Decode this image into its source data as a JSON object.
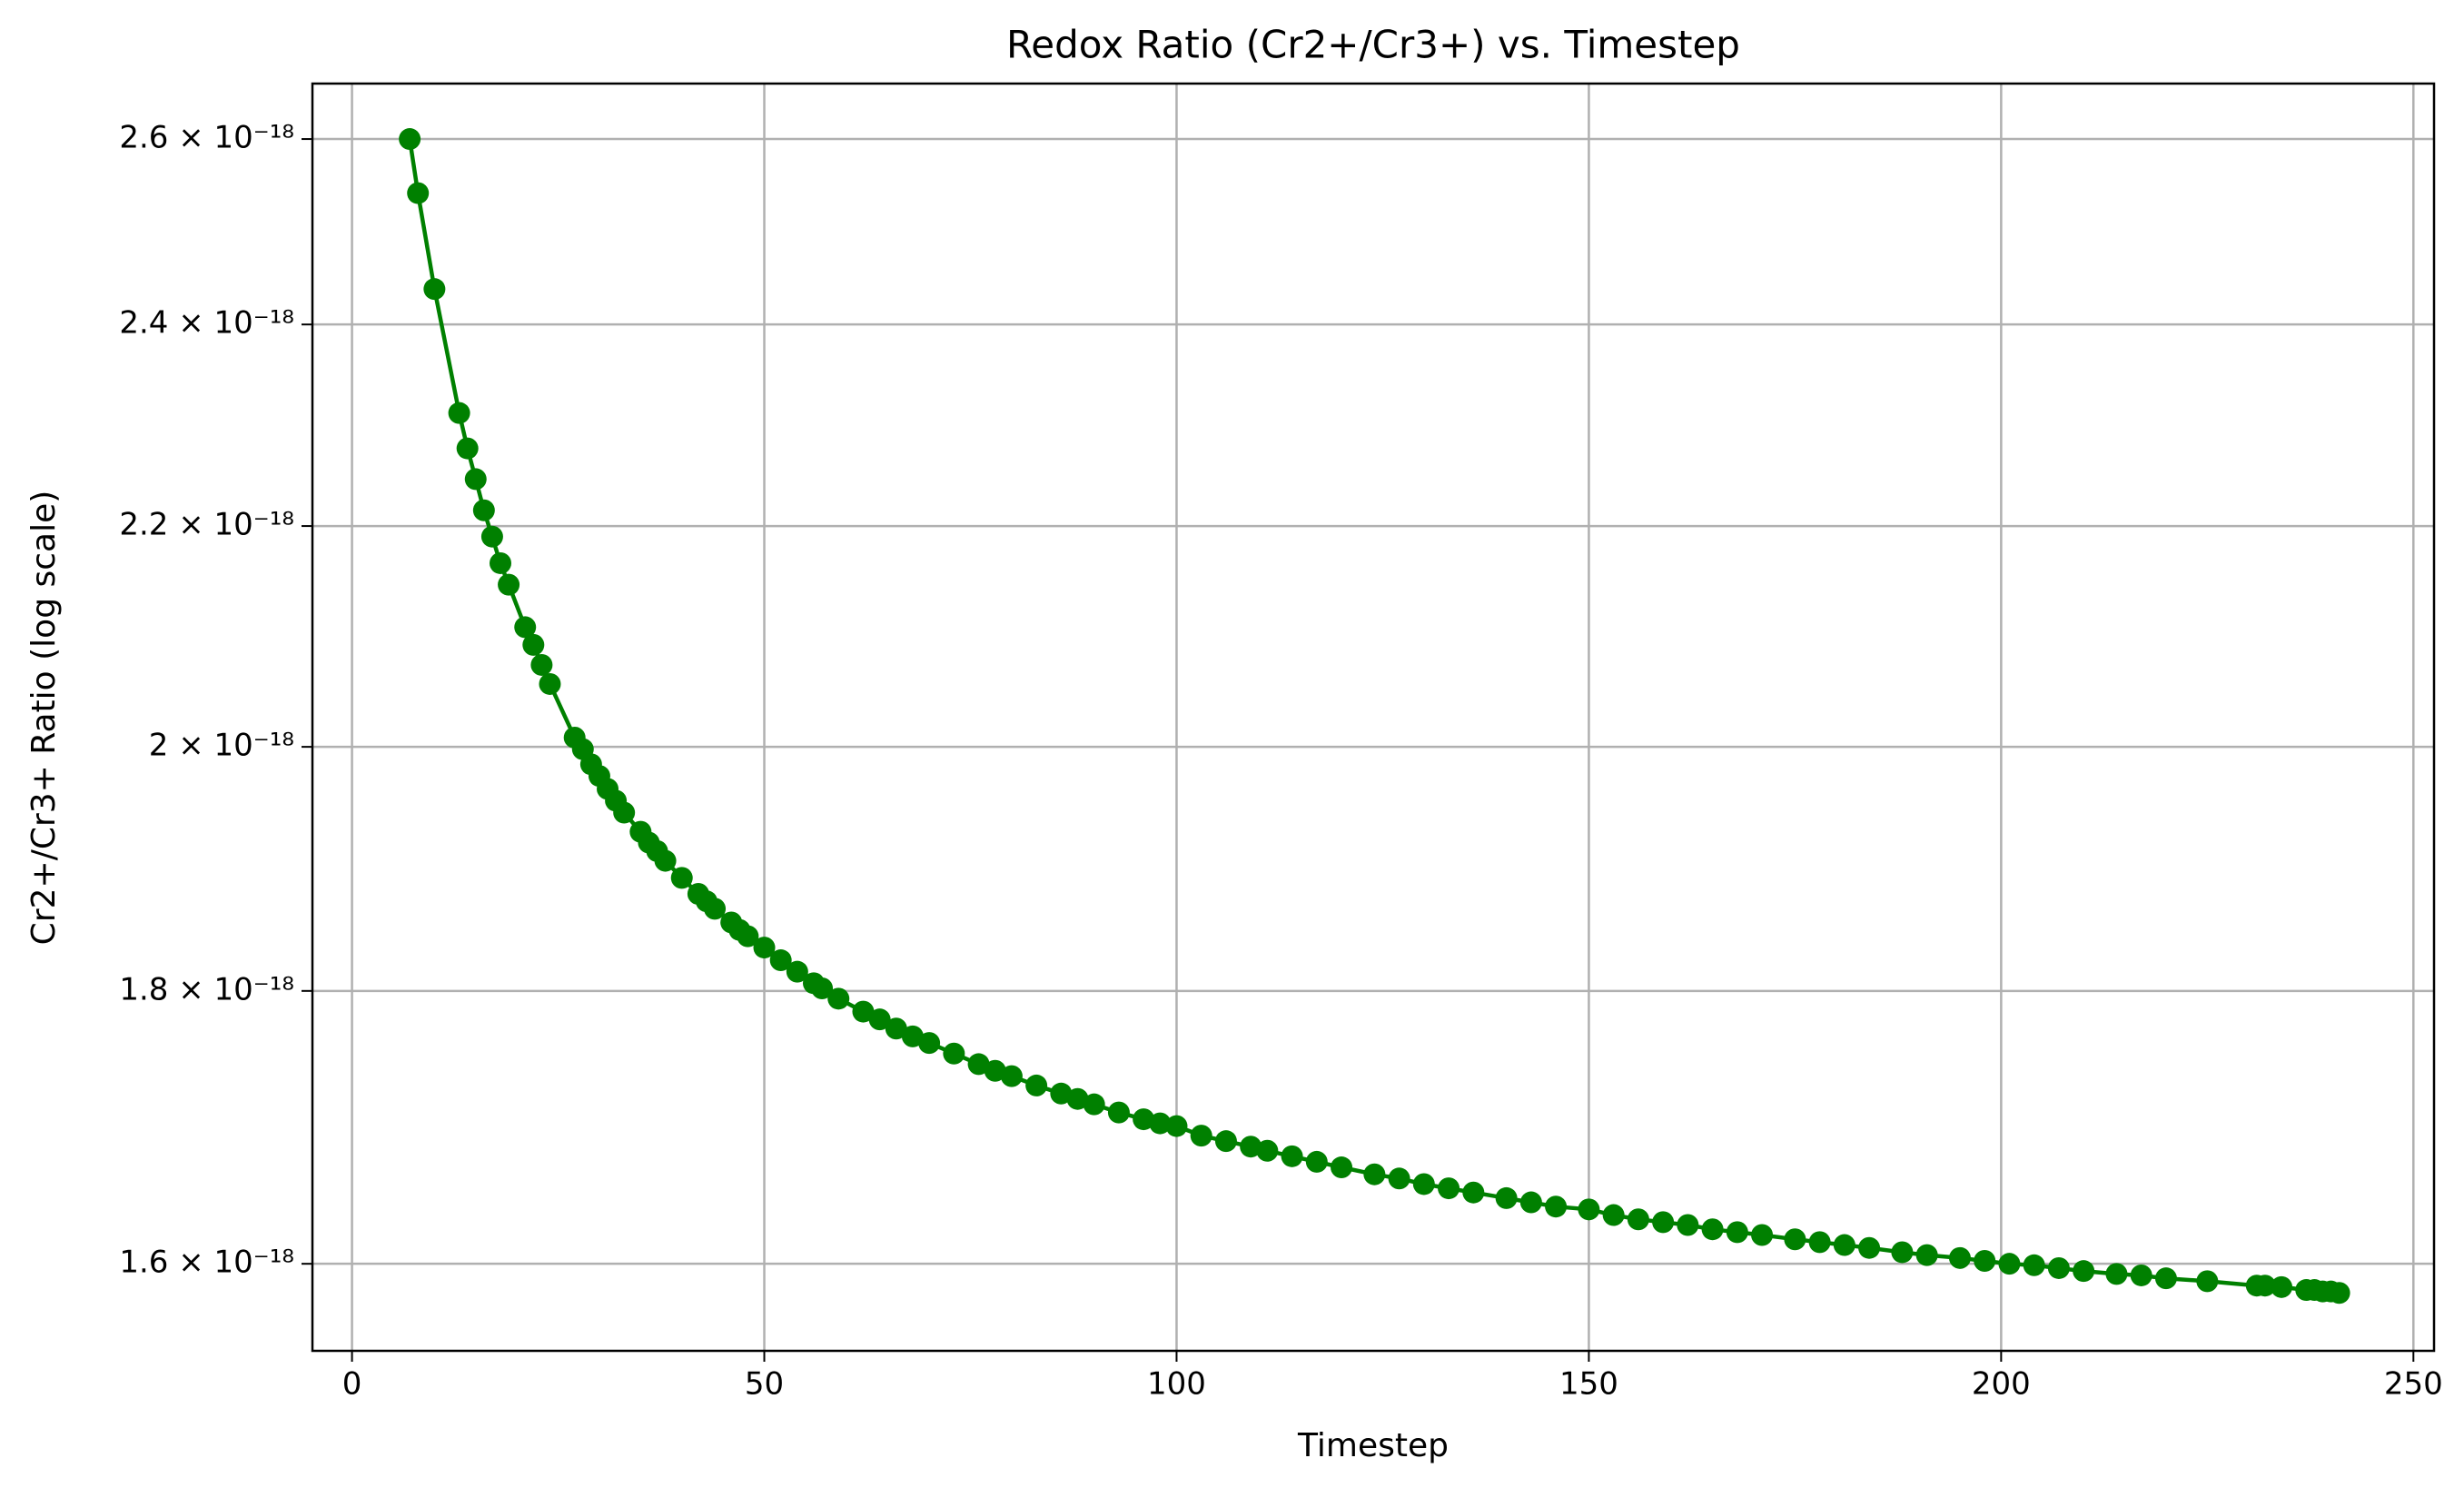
{
  "chart_data": {
    "type": "line",
    "title": "Redox Ratio (Cr2+/Cr3+) vs. Timestep",
    "x_label": "Timestep",
    "y_label": "Cr2+/Cr3+ Ratio (log scale)",
    "x": [
      7,
      8,
      10,
      13,
      14,
      15,
      16,
      17,
      18,
      19,
      21,
      22,
      23,
      24,
      27,
      28,
      29,
      30,
      31,
      32,
      33,
      35,
      36,
      37,
      38,
      40,
      42,
      43,
      44,
      46,
      47,
      48,
      50,
      52,
      54,
      56,
      57,
      59,
      62,
      64,
      66,
      68,
      70,
      73,
      76,
      78,
      80,
      83,
      86,
      88,
      90,
      93,
      96,
      98,
      100,
      103,
      106,
      109,
      111,
      114,
      117,
      120,
      124,
      127,
      130,
      133,
      136,
      140,
      143,
      146,
      150,
      153,
      156,
      159,
      162,
      165,
      168,
      171,
      175,
      178,
      181,
      184,
      188,
      191,
      195,
      198,
      201,
      204,
      207,
      210,
      214,
      217,
      220,
      225,
      231,
      232,
      234,
      237,
      238,
      239,
      240,
      241
    ],
    "values": [
      2.6e-18,
      2.54e-18,
      2.437e-18,
      2.31e-18,
      2.275e-18,
      2.245e-18,
      2.215e-18,
      2.19e-18,
      2.165e-18,
      2.145e-18,
      2.106e-18,
      2.09e-18,
      2.072e-18,
      2.055e-18,
      2.008e-18,
      1.998e-18,
      1.985e-18,
      1.975e-18,
      1.964e-18,
      1.954e-18,
      1.944e-18,
      1.928e-18,
      1.919e-18,
      1.912e-18,
      1.904e-18,
      1.89e-18,
      1.877e-18,
      1.871e-18,
      1.865e-18,
      1.854e-18,
      1.848e-18,
      1.843e-18,
      1.834e-18,
      1.824e-18,
      1.815e-18,
      1.806e-18,
      1.802e-18,
      1.794e-18,
      1.784e-18,
      1.778e-18,
      1.771e-18,
      1.765e-18,
      1.76e-18,
      1.752e-18,
      1.744e-18,
      1.739e-18,
      1.735e-18,
      1.728e-18,
      1.722e-18,
      1.718e-18,
      1.714e-18,
      1.708e-18,
      1.703e-18,
      1.7e-18,
      1.698e-18,
      1.691e-18,
      1.687e-18,
      1.683e-18,
      1.68e-18,
      1.676e-18,
      1.672e-18,
      1.668e-18,
      1.663e-18,
      1.66e-18,
      1.656e-18,
      1.653e-18,
      1.65e-18,
      1.646e-18,
      1.643e-18,
      1.64e-18,
      1.638e-18,
      1.634e-18,
      1.631e-18,
      1.629e-18,
      1.627e-18,
      1.624e-18,
      1.622e-18,
      1.62e-18,
      1.617e-18,
      1.615e-18,
      1.613e-18,
      1.611e-18,
      1.608e-18,
      1.606e-18,
      1.604e-18,
      1.602e-18,
      1.6e-18,
      1.599e-18,
      1.597e-18,
      1.595e-18,
      1.593e-18,
      1.592e-18,
      1.59e-18,
      1.588e-18,
      1.585e-18,
      1.585e-18,
      1.584e-18,
      1.582e-18,
      1.582e-18,
      1.581e-18,
      1.581e-18,
      1.58e-18
    ],
    "color": "#008000",
    "log_y": true,
    "grid": true,
    "xlim": [
      -4.8,
      252.5
    ],
    "xticks": [
      0,
      50,
      100,
      150,
      200,
      250
    ],
    "ylim": [
      1.541e-18,
      2.663e-18
    ],
    "yticks": [
      {
        "value": 1.6e-18,
        "label": "1.6 × 10⁻¹⁸"
      },
      {
        "value": 1.8e-18,
        "label": "1.8 × 10⁻¹⁸"
      },
      {
        "value": 2e-18,
        "label": "2 × 10⁻¹⁸"
      },
      {
        "value": 2.2e-18,
        "label": "2.2 × 10⁻¹⁸"
      },
      {
        "value": 2.4e-18,
        "label": "2.4 × 10⁻¹⁸"
      },
      {
        "value": 2.6e-18,
        "label": "2.6 × 10⁻¹⁸"
      }
    ]
  }
}
